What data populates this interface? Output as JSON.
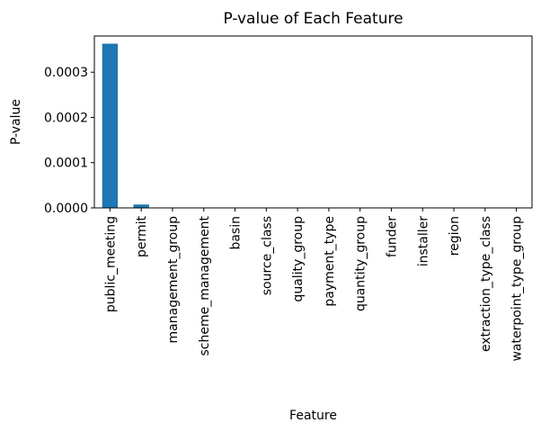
{
  "chart_data": {
    "type": "bar",
    "title": "P-value of Each Feature",
    "xlabel": "Feature",
    "ylabel": "P-value",
    "categories": [
      "public_meeting",
      "permit",
      "management_group",
      "scheme_management",
      "basin",
      "source_class",
      "quality_group",
      "payment_type",
      "quantity_group",
      "funder",
      "installer",
      "region",
      "extraction_type_class",
      "waterpoint_type_group"
    ],
    "values": [
      0.000363,
      7.5e-06,
      0,
      0,
      0,
      0,
      0,
      0,
      0,
      0,
      0,
      0,
      0,
      0
    ],
    "ylim": [
      0,
      0.00038
    ],
    "yticks": [
      0.0,
      0.0001,
      0.0002,
      0.0003
    ],
    "ytick_labels": [
      "0.0000",
      "0.0001",
      "0.0002",
      "0.0003"
    ],
    "bar_color": "#1f77b4",
    "grid": false,
    "legend": "none"
  }
}
